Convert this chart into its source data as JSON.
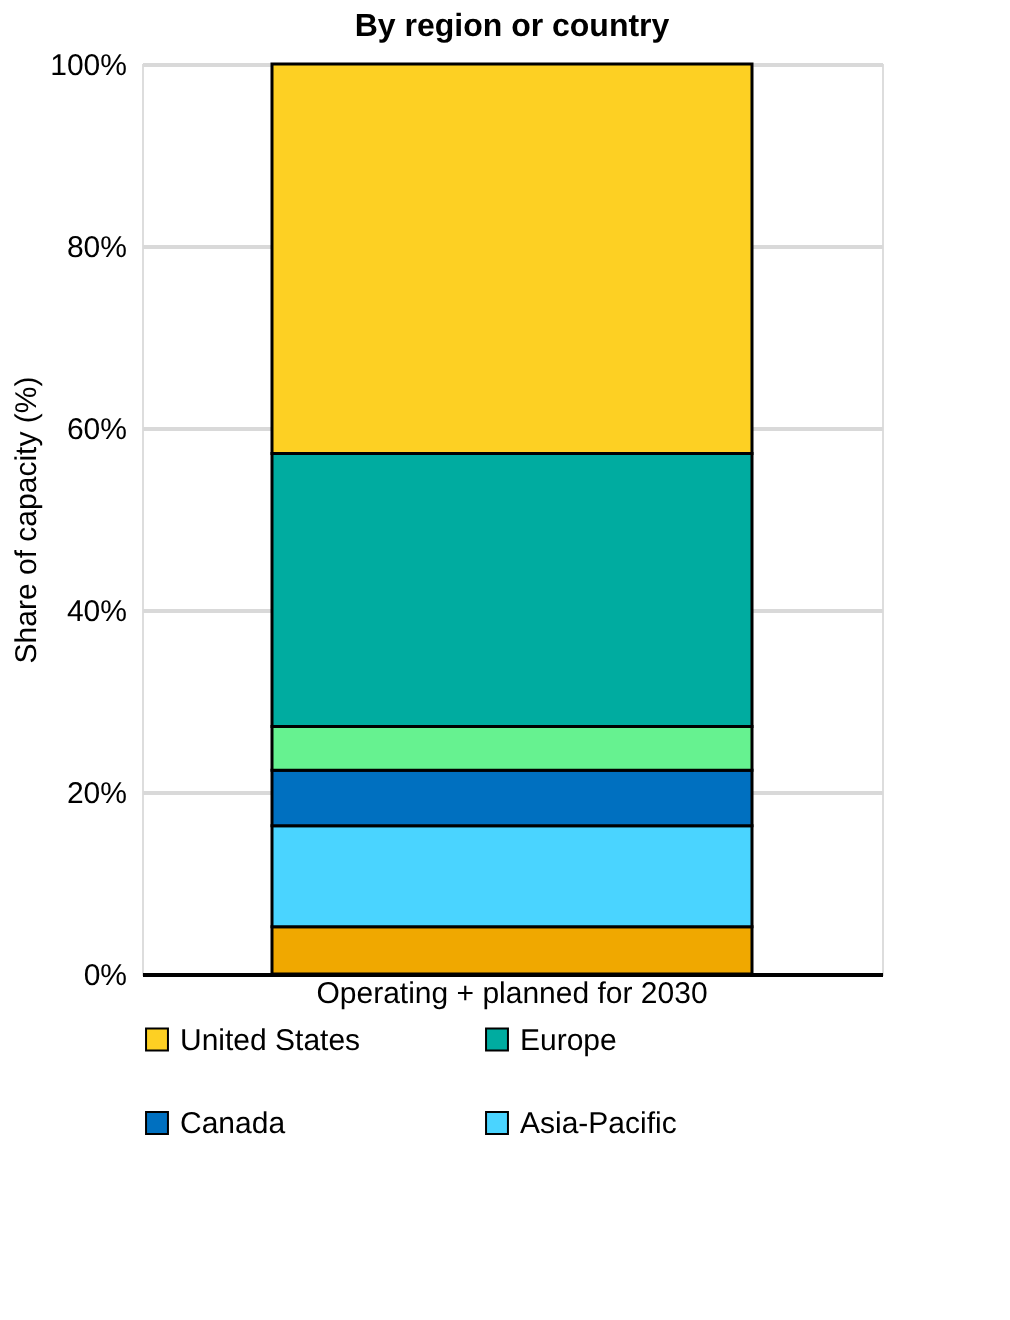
{
  "chart_data": {
    "type": "bar",
    "title": "By region or country",
    "ylabel": "Share of capacity (%)",
    "categories": [
      "Operating + planned for 2030"
    ],
    "stacked": true,
    "series": [
      {
        "color": "#f0a800",
        "values": [
          5.2
        ]
      },
      {
        "name": "Asia-Pacific",
        "color": "#4ad4ff",
        "values": [
          11.1
        ]
      },
      {
        "name": "Canada",
        "color": "#0070c0",
        "values": [
          6.1
        ]
      },
      {
        "color": "#66f290",
        "values": [
          4.8
        ]
      },
      {
        "name": "Europe",
        "color": "#00aca0",
        "values": [
          30.0
        ]
      },
      {
        "name": "United States",
        "color": "#fdd023",
        "values": [
          42.8
        ]
      }
    ],
    "ylim": [
      0,
      100
    ],
    "yticks": [
      {
        "value": 0,
        "label": "0%"
      },
      {
        "value": 20,
        "label": "20%"
      },
      {
        "value": 40,
        "label": "40%"
      },
      {
        "value": 60,
        "label": "60%"
      },
      {
        "value": 80,
        "label": "80%"
      },
      {
        "value": 100,
        "label": "100%"
      }
    ],
    "grid": "y",
    "legend": "bottom"
  }
}
